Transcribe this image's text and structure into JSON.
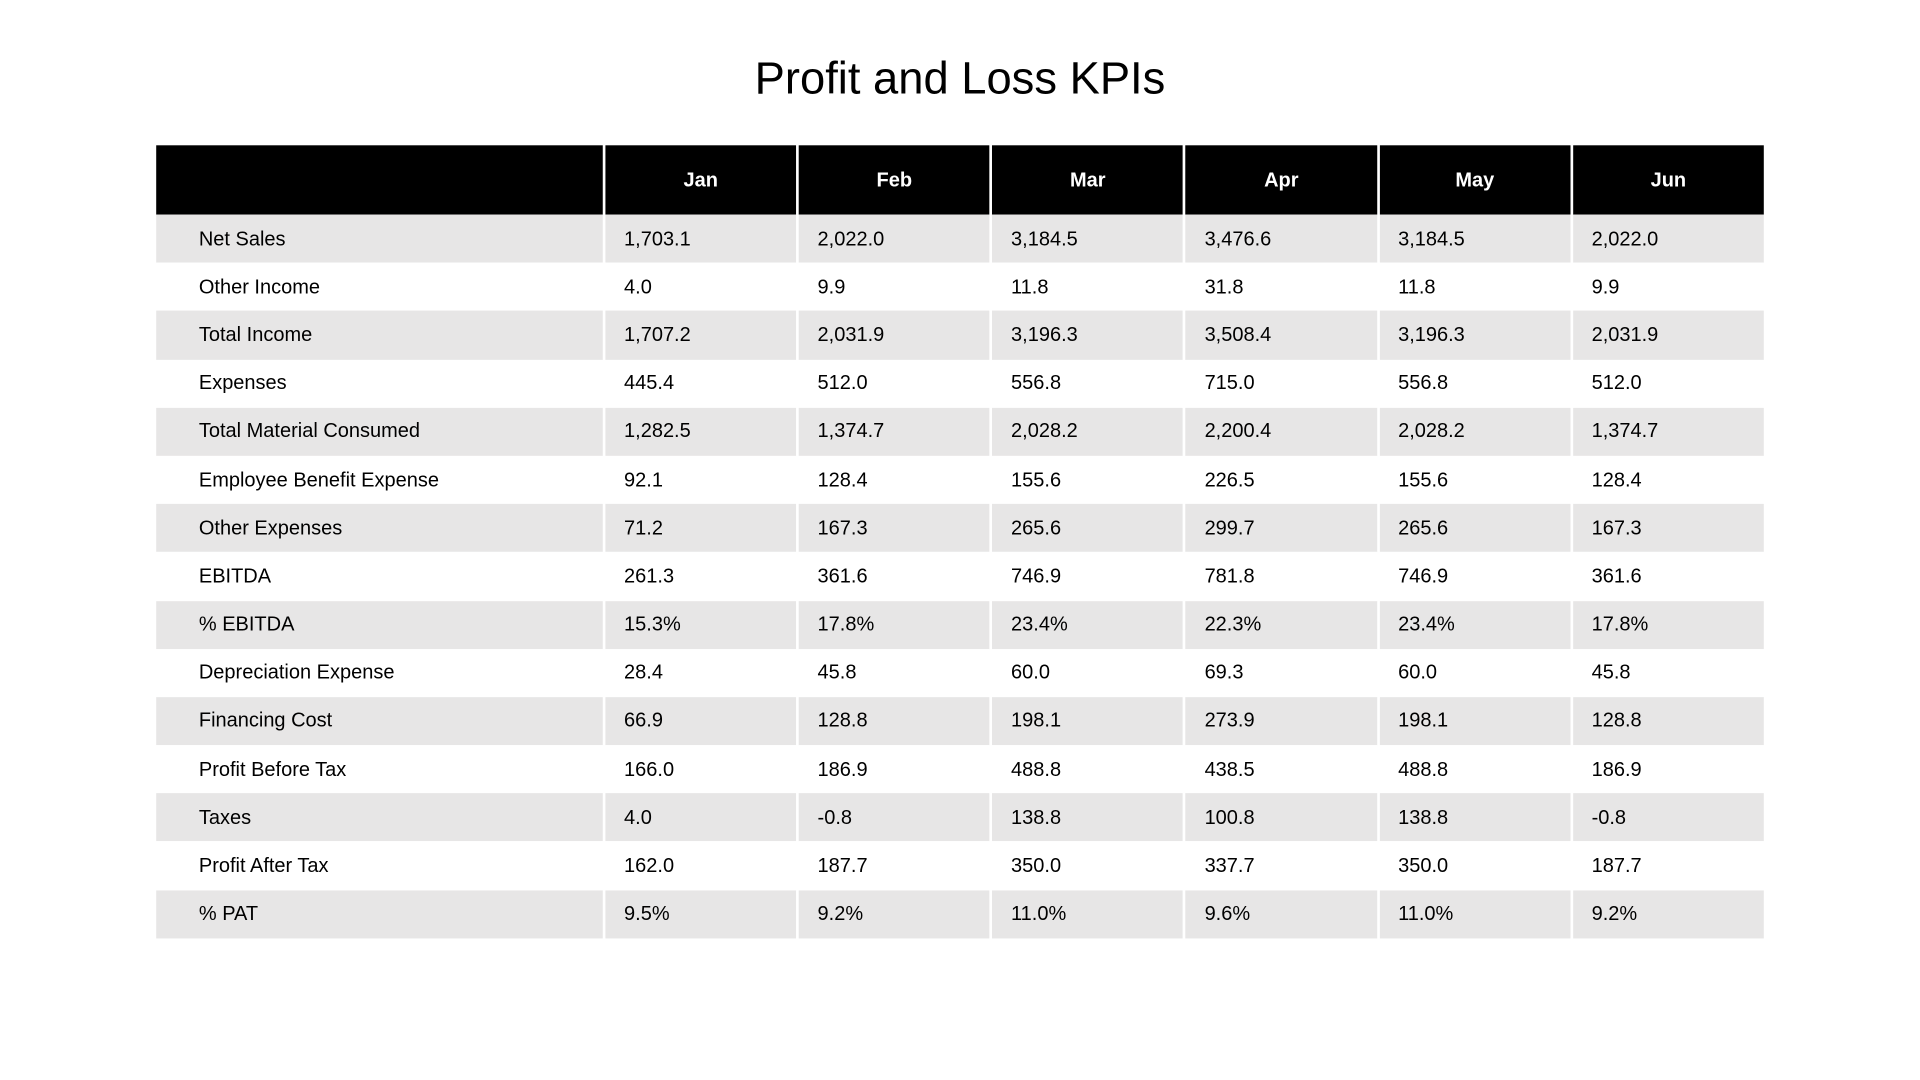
{
  "title": "Profit and Loss KPIs",
  "table": {
    "type": "table",
    "header_bg": "#000000",
    "header_fg": "#ffffff",
    "row_shaded_bg": "#e7e6e6",
    "row_plain_bg": "#ffffff",
    "text_color": "#000000",
    "title_fontsize": 34,
    "cell_fontsize": 15,
    "label_col_width": 340,
    "month_col_width": 145,
    "columns": [
      "",
      "Jan",
      "Feb",
      "Mar",
      "Apr",
      "May",
      "Jun"
    ],
    "rows": [
      {
        "shaded": true,
        "label": "Net Sales",
        "v": [
          "1,703.1",
          "2,022.0",
          "3,184.5",
          "3,476.6",
          "3,184.5",
          "2,022.0"
        ]
      },
      {
        "shaded": false,
        "label": "Other Income",
        "v": [
          "4.0",
          "9.9",
          "11.8",
          "31.8",
          "11.8",
          "9.9"
        ]
      },
      {
        "shaded": true,
        "label": "Total Income",
        "v": [
          "1,707.2",
          "2,031.9",
          "3,196.3",
          "3,508.4",
          "3,196.3",
          "2,031.9"
        ]
      },
      {
        "shaded": false,
        "label": "Expenses",
        "v": [
          "445.4",
          "512.0",
          "556.8",
          "715.0",
          "556.8",
          "512.0"
        ]
      },
      {
        "shaded": true,
        "label": "Total Material Consumed",
        "v": [
          "1,282.5",
          "1,374.7",
          "2,028.2",
          "2,200.4",
          "2,028.2",
          "1,374.7"
        ]
      },
      {
        "shaded": false,
        "label": "Employee Benefit Expense",
        "v": [
          "92.1",
          "128.4",
          "155.6",
          "226.5",
          "155.6",
          "128.4"
        ]
      },
      {
        "shaded": true,
        "label": "Other Expenses",
        "v": [
          "71.2",
          "167.3",
          "265.6",
          "299.7",
          "265.6",
          "167.3"
        ]
      },
      {
        "shaded": false,
        "label": "EBITDA",
        "v": [
          "261.3",
          "361.6",
          "746.9",
          "781.8",
          "746.9",
          "361.6"
        ]
      },
      {
        "shaded": true,
        "label": "% EBITDA",
        "v": [
          "15.3%",
          "17.8%",
          "23.4%",
          "22.3%",
          "23.4%",
          "17.8%"
        ]
      },
      {
        "shaded": false,
        "label": "Depreciation Expense",
        "v": [
          "28.4",
          "45.8",
          "60.0",
          "69.3",
          "60.0",
          "45.8"
        ]
      },
      {
        "shaded": true,
        "label": "Financing Cost",
        "v": [
          "66.9",
          "128.8",
          "198.1",
          "273.9",
          "198.1",
          "128.8"
        ]
      },
      {
        "shaded": false,
        "label": "Profit Before Tax",
        "v": [
          "166.0",
          "186.9",
          "488.8",
          "438.5",
          "488.8",
          "186.9"
        ]
      },
      {
        "shaded": true,
        "label": "Taxes",
        "v": [
          "4.0",
          "-0.8",
          "138.8",
          "100.8",
          "138.8",
          "-0.8"
        ]
      },
      {
        "shaded": false,
        "label": "Profit After Tax",
        "v": [
          "162.0",
          "187.7",
          "350.0",
          "337.7",
          "350.0",
          "187.7"
        ]
      },
      {
        "shaded": true,
        "label": "% PAT",
        "v": [
          "9.5%",
          "9.2%",
          "11.0%",
          "9.6%",
          "11.0%",
          "9.2%"
        ]
      }
    ]
  }
}
